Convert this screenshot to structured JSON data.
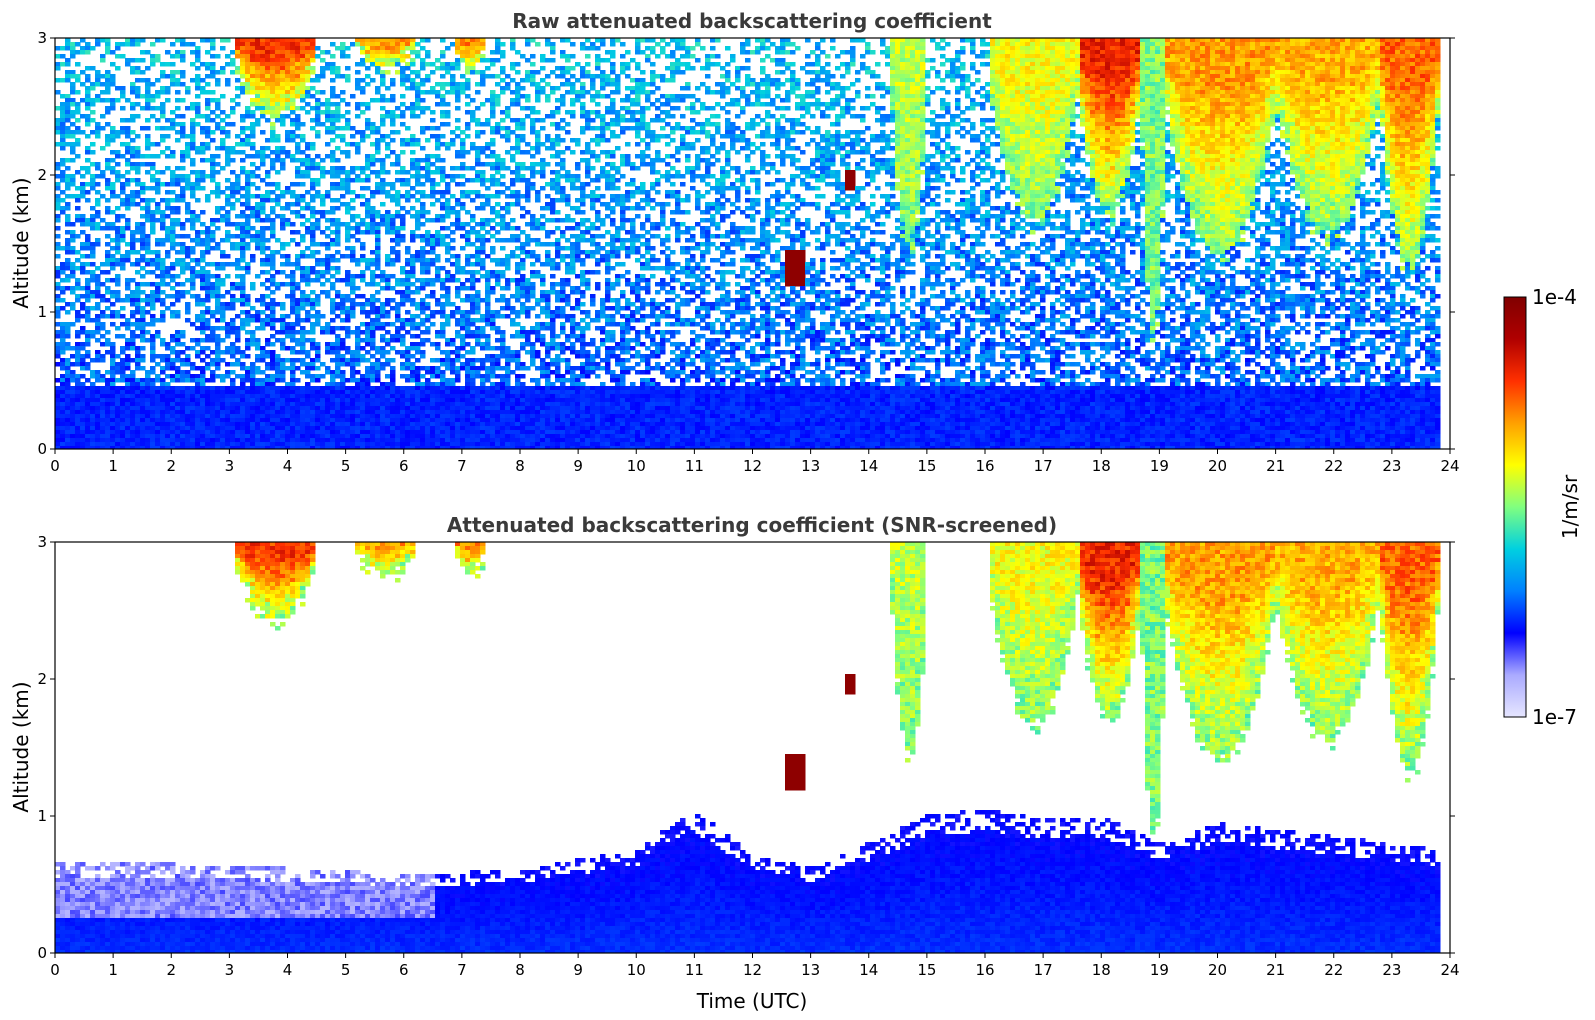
{
  "chart_data": [
    {
      "type": "heatmap",
      "title": "Raw attenuated backscattering coefficient",
      "xlabel": "",
      "ylabel": "Altitude (km)",
      "xlim": [
        0,
        24
      ],
      "ylim": [
        0,
        3
      ],
      "xticks": [
        "0",
        "1",
        "2",
        "3",
        "4",
        "5",
        "6",
        "7",
        "8",
        "9",
        "10",
        "11",
        "12",
        "13",
        "14",
        "15",
        "16",
        "17",
        "18",
        "19",
        "20",
        "21",
        "22",
        "23",
        "24"
      ],
      "yticks": [
        "0",
        "1",
        "2",
        "3"
      ],
      "scale": "log",
      "features": [
        {
          "kind": "cloud_column",
          "t0": 3.1,
          "t1": 4.5,
          "base_km": 2.4,
          "intensity": 0.8
        },
        {
          "kind": "cloud_column",
          "t0": 5.2,
          "t1": 6.2,
          "base_km": 2.75,
          "intensity": 0.7
        },
        {
          "kind": "cloud_column",
          "t0": 6.9,
          "t1": 7.4,
          "base_km": 2.75,
          "intensity": 0.72
        },
        {
          "kind": "cloud_blob",
          "t0": 12.55,
          "t1": 12.9,
          "base_km": 1.2,
          "top_km": 1.45,
          "intensity": 0.97
        },
        {
          "kind": "cloud_blob",
          "t0": 13.55,
          "t1": 13.8,
          "base_km": 1.88,
          "top_km": 2.05,
          "intensity": 0.97
        },
        {
          "kind": "cloud_column",
          "t0": 14.4,
          "t1": 15.0,
          "base_km": 1.45,
          "intensity": 0.55
        },
        {
          "kind": "cloud_column",
          "t0": 16.1,
          "t1": 17.6,
          "base_km": 1.65,
          "intensity": 0.6
        },
        {
          "kind": "cloud_column",
          "t0": 17.6,
          "t1": 18.7,
          "base_km": 1.7,
          "intensity": 0.82
        },
        {
          "kind": "cloud_column",
          "t0": 18.7,
          "t1": 19.1,
          "base_km": 0.8,
          "intensity": 0.5
        },
        {
          "kind": "cloud_column",
          "t0": 19.1,
          "t1": 21.0,
          "base_km": 1.4,
          "intensity": 0.7
        },
        {
          "kind": "cloud_column",
          "t0": 21.0,
          "t1": 22.8,
          "base_km": 1.55,
          "intensity": 0.68
        },
        {
          "kind": "cloud_column",
          "t0": 22.8,
          "t1": 23.8,
          "base_km": 1.3,
          "intensity": 0.75
        }
      ],
      "data_end_hour": 23.8
    },
    {
      "type": "heatmap",
      "title": "Attenuated backscattering coefficient (SNR-screened)",
      "xlabel": "Time (UTC)",
      "ylabel": "Altitude (km)",
      "xlim": [
        0,
        24
      ],
      "ylim": [
        0,
        3
      ],
      "xticks": [
        "0",
        "1",
        "2",
        "3",
        "4",
        "5",
        "6",
        "7",
        "8",
        "9",
        "10",
        "11",
        "12",
        "13",
        "14",
        "15",
        "16",
        "17",
        "18",
        "19",
        "20",
        "21",
        "22",
        "23",
        "24"
      ],
      "yticks": [
        "0",
        "1",
        "2",
        "3"
      ],
      "scale": "log",
      "boundary_layer_top_km": [
        {
          "t": 0,
          "km": 0.65
        },
        {
          "t": 2,
          "km": 0.65
        },
        {
          "t": 4,
          "km": 0.62
        },
        {
          "t": 6,
          "km": 0.58
        },
        {
          "t": 8,
          "km": 0.6
        },
        {
          "t": 9,
          "km": 0.68
        },
        {
          "t": 10,
          "km": 0.75
        },
        {
          "t": 11,
          "km": 1.05
        },
        {
          "t": 12,
          "km": 0.72
        },
        {
          "t": 13,
          "km": 0.62
        },
        {
          "t": 14,
          "km": 0.8
        },
        {
          "t": 15,
          "km": 1.0
        },
        {
          "t": 16,
          "km": 1.05
        },
        {
          "t": 17,
          "km": 0.98
        },
        {
          "t": 18,
          "km": 1.0
        },
        {
          "t": 19,
          "km": 0.8
        },
        {
          "t": 20,
          "km": 0.95
        },
        {
          "t": 21,
          "km": 0.9
        },
        {
          "t": 22,
          "km": 0.85
        },
        {
          "t": 23,
          "km": 0.8
        },
        {
          "t": 23.8,
          "km": 0.75
        }
      ],
      "data_end_hour": 23.8
    }
  ],
  "colorbar": {
    "label": "1/m/sr",
    "min_label": "1e-7",
    "max_label": "1e-4",
    "colors": [
      "#e6e6ff",
      "#aaaaff",
      "#0000ff",
      "#0080ff",
      "#00d0e0",
      "#80ff80",
      "#ffff00",
      "#ffa000",
      "#ff3000",
      "#b00000",
      "#800000"
    ]
  }
}
